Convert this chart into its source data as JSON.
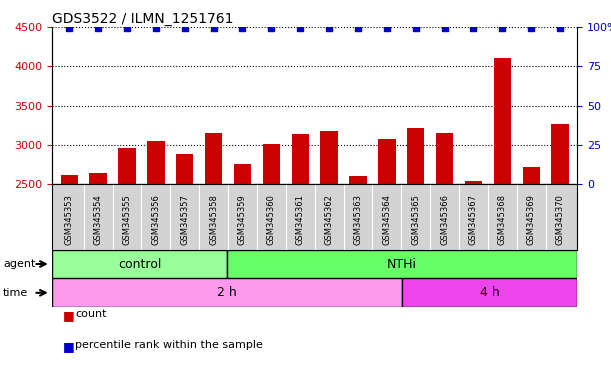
{
  "title": "GDS3522 / ILMN_1251761",
  "samples": [
    "GSM345353",
    "GSM345354",
    "GSM345355",
    "GSM345356",
    "GSM345357",
    "GSM345358",
    "GSM345359",
    "GSM345360",
    "GSM345361",
    "GSM345362",
    "GSM345363",
    "GSM345364",
    "GSM345365",
    "GSM345366",
    "GSM345367",
    "GSM345368",
    "GSM345369",
    "GSM345370"
  ],
  "counts": [
    2620,
    2640,
    2960,
    3050,
    2880,
    3150,
    2760,
    3010,
    3140,
    3180,
    2610,
    3080,
    3220,
    3150,
    2540,
    4110,
    2720,
    3270
  ],
  "ylim_left": [
    2500,
    4500
  ],
  "ylim_right": [
    0,
    100
  ],
  "yticks_left": [
    2500,
    3000,
    3500,
    4000,
    4500
  ],
  "yticks_right": [
    0,
    25,
    50,
    75,
    100
  ],
  "ytick_labels_right": [
    "0",
    "25",
    "50",
    "75",
    "100%"
  ],
  "bar_color": "#cc0000",
  "dot_color": "#0000cc",
  "control_color": "#99ff99",
  "nthi_color": "#66ff66",
  "time_2h_color": "#ff99ee",
  "time_4h_color": "#ee44ee",
  "bg_color": "#d3d3d3",
  "plot_bg": "#ffffff",
  "legend_count_color": "#cc0000",
  "legend_dot_color": "#0000cc",
  "title_color": "#000000",
  "axis_color_left": "#cc0000",
  "axis_color_right": "#0000cc",
  "n_control": 6,
  "n_total": 18,
  "n_2h": 12
}
